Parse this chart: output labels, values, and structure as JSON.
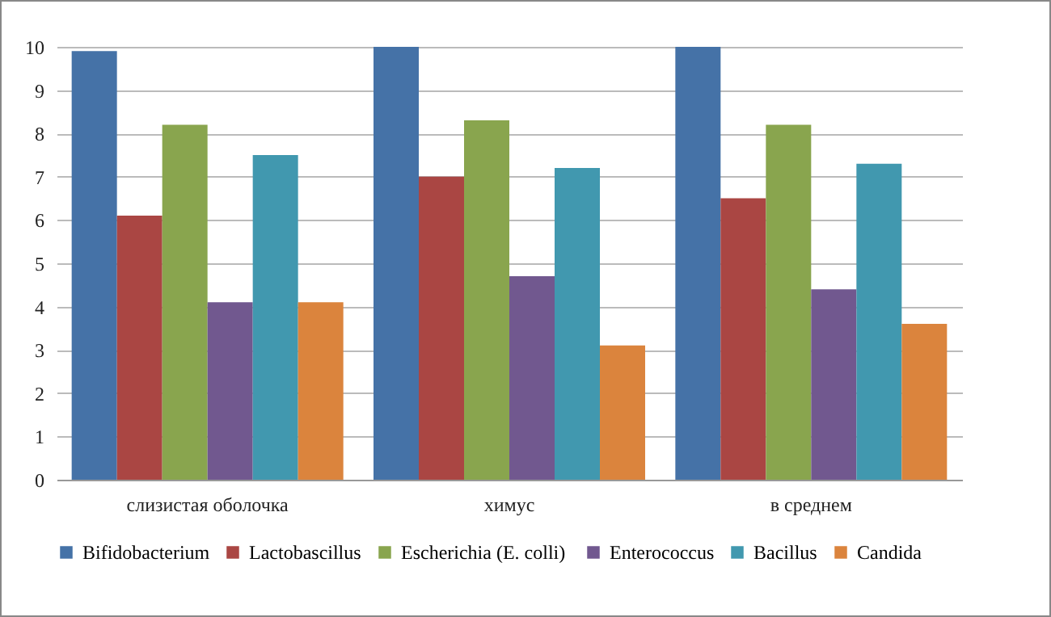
{
  "chart_data": {
    "type": "bar",
    "categories": [
      "слизистая оболочка",
      "химус",
      "в среднем"
    ],
    "series": [
      {
        "name": "Bifidobacterium",
        "color": "#4572a7",
        "values": [
          9.9,
          10.0,
          10.0
        ]
      },
      {
        "name": "Lactobascillus",
        "color": "#aa4643",
        "values": [
          6.1,
          7.0,
          6.5
        ]
      },
      {
        "name": "Escherichia  (E. colli)",
        "color": "#89a54e",
        "values": [
          8.2,
          8.3,
          8.2
        ]
      },
      {
        "name": "Enterococcus",
        "color": "#71588f",
        "values": [
          4.1,
          4.7,
          4.4
        ]
      },
      {
        "name": "Bacillus",
        "color": "#4198af",
        "values": [
          7.5,
          7.2,
          7.3
        ]
      },
      {
        "name": "Candida",
        "color": "#db843d",
        "values": [
          4.1,
          3.1,
          3.6
        ]
      }
    ],
    "ylim": [
      0,
      10
    ],
    "yticks": [
      0,
      1,
      2,
      3,
      4,
      5,
      6,
      7,
      8,
      9,
      10
    ],
    "grid": "y",
    "legend": "bottom"
  }
}
